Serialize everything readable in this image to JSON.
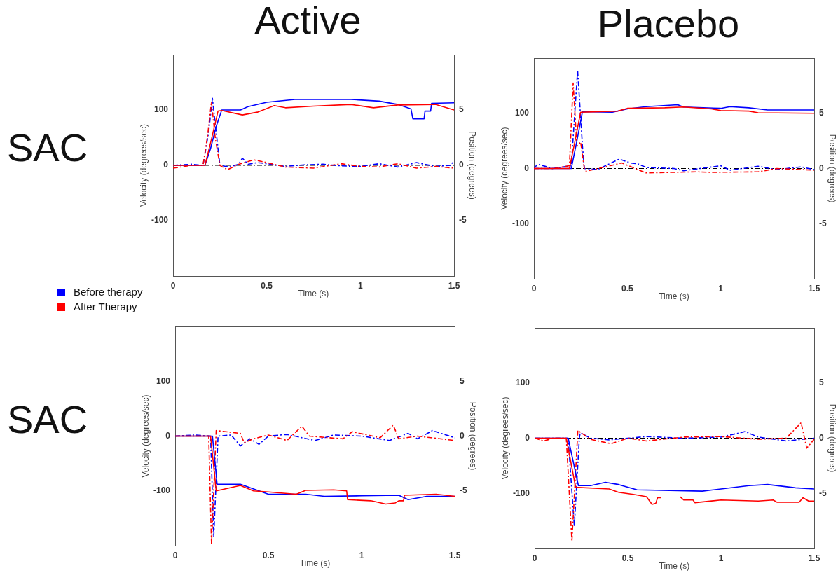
{
  "chart_data": [
    {
      "type": "line",
      "title": "Active",
      "annotations": [
        "SAC"
      ],
      "legend": "bottom left",
      "xlabel": "Time (s)",
      "ylabel": "Velocity (degrees/sec)",
      "y2label": "Position (degrees)",
      "xlim": [
        0,
        1.5
      ],
      "xticks": [
        0,
        0.5,
        1,
        1.5
      ],
      "ylim": [
        -200,
        200
      ],
      "yticks": [
        -100,
        0,
        100
      ],
      "y2lim": [
        -10,
        10
      ],
      "y2ticks": [
        -5,
        0,
        5
      ],
      "ref_lines": [
        {
          "axis": "y",
          "value": 0,
          "color": "#000000",
          "line_style": "dashed"
        }
      ],
      "series": [
        {
          "color": "#0000ff",
          "line_style": "dashed",
          "axis": "y",
          "x": [
            0,
            0.1,
            0.16,
            0.19,
            0.21,
            0.23,
            0.25,
            0.3,
            0.35,
            0.37,
            0.4,
            0.45,
            0.5,
            0.6,
            0.7,
            0.8,
            0.9,
            1.0,
            1.1,
            1.2,
            1.3,
            1.4,
            1.48,
            1.5
          ],
          "values": [
            0,
            2,
            0,
            60,
            121,
            60,
            0,
            -3,
            2,
            13,
            2,
            5,
            3,
            -2,
            1,
            2,
            -1,
            -2,
            3,
            -3,
            5,
            -2,
            0,
            8
          ]
        },
        {
          "color": "#ff0000",
          "line_style": "dashed",
          "axis": "y",
          "x": [
            0,
            0.1,
            0.16,
            0.185,
            0.205,
            0.225,
            0.25,
            0.29,
            0.35,
            0.43,
            0.5,
            0.6,
            0.75,
            0.9,
            1.0,
            1.1,
            1.2,
            1.3,
            1.4,
            1.5
          ],
          "values": [
            -5,
            0,
            0,
            55,
            115,
            50,
            0,
            -8,
            2,
            10,
            5,
            -3,
            -5,
            3,
            -2,
            -3,
            3,
            -5,
            -2,
            -5
          ]
        },
        {
          "name": "Before therapy",
          "color": "#0000ff",
          "line_style": "solid",
          "axis": "y2",
          "x": [
            0,
            0.17,
            0.2,
            0.23,
            0.26,
            0.36,
            0.4,
            0.5,
            0.65,
            0.95,
            1.1,
            1.2,
            1.27,
            1.28,
            1.34,
            1.345,
            1.375,
            1.38,
            1.5
          ],
          "values": [
            0,
            0,
            1.5,
            3.5,
            5.0,
            5.0,
            5.3,
            5.7,
            5.95,
            5.95,
            5.8,
            5.5,
            5.1,
            4.2,
            4.2,
            4.9,
            4.9,
            5.6,
            5.65
          ]
        },
        {
          "name": "After Therapy",
          "color": "#ff0000",
          "line_style": "solid",
          "axis": "y2",
          "x": [
            0,
            0.17,
            0.2,
            0.24,
            0.26,
            0.37,
            0.45,
            0.54,
            0.6,
            0.75,
            0.95,
            1.07,
            1.2,
            1.4,
            1.5
          ],
          "values": [
            0,
            0,
            2,
            4.9,
            4.95,
            4.55,
            4.8,
            5.4,
            5.2,
            5.35,
            5.5,
            5.2,
            5.45,
            5.5,
            5.0
          ]
        }
      ]
    },
    {
      "type": "line",
      "title": "Placebo",
      "xlabel": "Time (s)",
      "ylabel": "Velocity (degrees/sec)",
      "y2label": "Position (degrees)",
      "xlim": [
        0,
        1.5
      ],
      "xticks": [
        0,
        0.5,
        1,
        1.5
      ],
      "ylim": [
        -200,
        200
      ],
      "yticks": [
        -100,
        0,
        100
      ],
      "y2lim": [
        -10,
        10
      ],
      "y2ticks": [
        -5,
        0,
        5
      ],
      "ref_lines": [
        {
          "axis": "y",
          "value": 0,
          "color": "#000000",
          "line_style": "dashed"
        }
      ],
      "series": [
        {
          "color": "#0000ff",
          "line_style": "dashed",
          "axis": "y",
          "x": [
            0,
            0.02,
            0.1,
            0.2,
            0.234,
            0.26,
            0.27,
            0.34,
            0.456,
            0.52,
            0.56,
            0.6,
            0.75,
            0.8,
            1.0,
            1.05,
            1.2,
            1.3,
            1.43,
            1.5
          ],
          "values": [
            0,
            8,
            0,
            5,
            178,
            40,
            0,
            -2,
            17,
            10,
            8,
            2,
            0,
            -4,
            5,
            -3,
            4,
            -2,
            3,
            -2
          ]
        },
        {
          "color": "#ff0000",
          "line_style": "dashed",
          "axis": "y",
          "x": [
            0,
            0.1,
            0.19,
            0.21,
            0.23,
            0.25,
            0.27,
            0.28,
            0.47,
            0.6,
            0.87,
            0.95,
            1.2,
            1.3,
            1.5
          ],
          "values": [
            0,
            0,
            5,
            155,
            40,
            48,
            0,
            -5,
            10,
            -8,
            -6,
            -7,
            -6,
            0,
            -3
          ]
        },
        {
          "color": "#0000ff",
          "line_style": "solid",
          "axis": "y2",
          "x": [
            0,
            0.2,
            0.23,
            0.26,
            0.42,
            0.5,
            0.6,
            0.77,
            0.8,
            1.0,
            1.05,
            1.15,
            1.25,
            1.5
          ],
          "values": [
            0,
            0,
            2.5,
            5.15,
            5.1,
            5.4,
            5.6,
            5.78,
            5.57,
            5.45,
            5.6,
            5.5,
            5.3,
            5.3
          ]
        },
        {
          "color": "#ff0000",
          "line_style": "solid",
          "axis": "y2",
          "x": [
            0,
            0.19,
            0.22,
            0.25,
            0.45,
            0.5,
            0.7,
            0.8,
            0.95,
            1.0,
            1.15,
            1.2,
            1.5
          ],
          "values": [
            0,
            0,
            2.5,
            5.1,
            5.2,
            5.45,
            5.5,
            5.57,
            5.4,
            5.25,
            5.2,
            5.05,
            5.0
          ]
        }
      ]
    },
    {
      "type": "line",
      "annotations": [
        "SAC"
      ],
      "xlabel": "Time (s)",
      "ylabel": "Velocity (degrees/sec)",
      "y2label": "Position (degrees)",
      "xlim": [
        0,
        1.5
      ],
      "xticks": [
        0,
        0.5,
        1,
        1.5
      ],
      "ylim": [
        -200,
        200
      ],
      "yticks": [
        -100,
        0,
        100
      ],
      "y2lim": [
        -10,
        10
      ],
      "y2ticks": [
        -5,
        0,
        5
      ],
      "ref_lines": [
        {
          "axis": "y",
          "value": 0,
          "color": "#000000",
          "line_style": "dashed"
        }
      ],
      "series": [
        {
          "color": "#0000ff",
          "line_style": "dashed",
          "axis": "y",
          "x": [
            0,
            0.1,
            0.19,
            0.207,
            0.23,
            0.3,
            0.35,
            0.4,
            0.45,
            0.5,
            0.6,
            0.75,
            0.85,
            1.0,
            1.15,
            1.25,
            1.3,
            1.38,
            1.5
          ],
          "values": [
            0,
            2,
            0,
            -184,
            0,
            2,
            -18,
            -5,
            -15,
            0,
            3,
            -8,
            2,
            0,
            -8,
            5,
            -5,
            10,
            -3
          ]
        },
        {
          "color": "#ff0000",
          "line_style": "dashed",
          "axis": "y",
          "x": [
            0,
            0.1,
            0.18,
            0.195,
            0.22,
            0.35,
            0.37,
            0.42,
            0.5,
            0.6,
            0.68,
            0.72,
            0.9,
            0.95,
            1.1,
            1.17,
            1.2,
            1.3,
            1.5
          ],
          "values": [
            0,
            0,
            0,
            -198,
            10,
            5,
            -12,
            -5,
            2,
            -8,
            18,
            0,
            -5,
            8,
            -3,
            20,
            -5,
            0,
            -8
          ]
        },
        {
          "color": "#0000ff",
          "line_style": "solid",
          "axis": "y2",
          "x": [
            0,
            0.2,
            0.225,
            0.35,
            0.4,
            0.45,
            0.5,
            0.7,
            0.8,
            1.0,
            1.2,
            1.25,
            1.35,
            1.5
          ],
          "values": [
            0,
            0,
            -4.4,
            -4.4,
            -4.7,
            -5.0,
            -5.3,
            -5.3,
            -5.5,
            -5.45,
            -5.4,
            -5.8,
            -5.5,
            -5.5
          ]
        },
        {
          "color": "#ff0000",
          "line_style": "solid",
          "axis": "y2",
          "x": [
            0,
            0.19,
            0.22,
            0.35,
            0.42,
            0.5,
            0.65,
            0.7,
            0.85,
            0.92,
            0.925,
            1.05,
            1.13,
            1.18,
            1.2,
            1.225,
            1.23,
            1.4,
            1.5
          ],
          "values": [
            0,
            0,
            -5.0,
            -4.5,
            -5.0,
            -5.1,
            -5.3,
            -4.95,
            -4.9,
            -5.0,
            -5.8,
            -5.9,
            -6.2,
            -6.1,
            -5.9,
            -5.9,
            -5.4,
            -5.3,
            -5.5
          ]
        }
      ]
    },
    {
      "type": "line",
      "xlabel": "Time (s)",
      "ylabel": "Velocity (degrees/sec)",
      "y2label": "Position (degrees)",
      "xlim": [
        0,
        1.5
      ],
      "xticks": [
        0,
        0.5,
        1,
        1.5
      ],
      "ylim": [
        -200,
        200
      ],
      "yticks": [
        -100,
        0,
        100
      ],
      "y2lim": [
        -10,
        10
      ],
      "y2ticks": [
        -5,
        0,
        5
      ],
      "ref_lines": [
        {
          "axis": "y",
          "value": 0,
          "color": "#000000",
          "line_style": "dashed"
        }
      ],
      "series": [
        {
          "color": "#0000ff",
          "line_style": "dashed",
          "axis": "y",
          "x": [
            0,
            0.1,
            0.18,
            0.213,
            0.24,
            0.245,
            0.3,
            0.4,
            0.6,
            0.8,
            1.0,
            1.13,
            1.2,
            1.35,
            1.5
          ],
          "values": [
            0,
            0,
            0,
            -160,
            0,
            10,
            0,
            -3,
            3,
            0,
            2,
            12,
            2,
            -5,
            0
          ]
        },
        {
          "color": "#ff0000",
          "line_style": "dashed",
          "axis": "y",
          "x": [
            0,
            0.05,
            0.1,
            0.17,
            0.2,
            0.232,
            0.3,
            0.41,
            0.5,
            0.6,
            0.8,
            1.0,
            1.2,
            1.35,
            1.43,
            1.46,
            1.5
          ],
          "values": [
            0,
            -5,
            0,
            0,
            -187,
            14,
            -2,
            -10,
            0,
            -5,
            2,
            3,
            -2,
            0,
            28,
            -18,
            -2
          ]
        },
        {
          "color": "#0000ff",
          "line_style": "solid",
          "axis": "y2",
          "x": [
            0,
            0.18,
            0.235,
            0.3,
            0.38,
            0.45,
            0.55,
            0.9,
            1.0,
            1.15,
            1.25,
            1.4,
            1.5
          ],
          "values": [
            0,
            0,
            -4.3,
            -4.3,
            -4.0,
            -4.2,
            -4.68,
            -4.8,
            -4.6,
            -4.3,
            -4.2,
            -4.5,
            -4.6
          ]
        },
        {
          "color": "#ff0000",
          "line_style": "solid",
          "axis": "y2",
          "x": [
            0,
            0.17,
            0.22,
            0.4,
            0.45,
            0.53,
            0.6,
            0.63,
            0.65,
            0.66,
            0.68,
            0.73,
            0.78,
            0.8,
            0.85,
            0.86,
            1.0,
            1.2,
            1.28,
            1.3,
            1.42,
            1.44,
            1.47,
            1.5
          ],
          "values": [
            0,
            0,
            -4.45,
            -4.6,
            -4.9,
            -5.1,
            -5.3,
            -6.0,
            -5.9,
            -5.4,
            -5.4,
            null,
            -5.3,
            -5.6,
            -5.6,
            -5.85,
            -5.6,
            -5.7,
            -5.6,
            -5.8,
            -5.8,
            -5.4,
            -5.7,
            -5.7
          ]
        }
      ]
    }
  ]
}
